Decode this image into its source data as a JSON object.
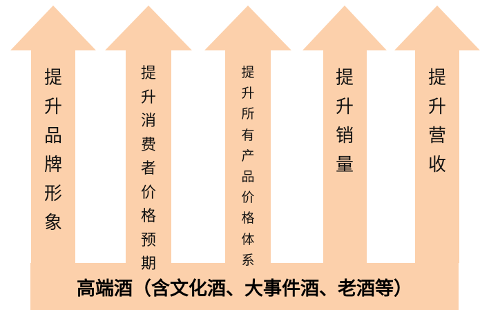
{
  "base": {
    "label": "高端酒（含文化酒、大事件酒、老酒等）"
  },
  "arrows": [
    {
      "label": "提升品牌形象"
    },
    {
      "label": "提升消费者价格预期"
    },
    {
      "label": "提升所有产品价格体系"
    },
    {
      "label": "提升销量"
    },
    {
      "label": "提升营收"
    }
  ],
  "colors": {
    "fill": "#fcd0ab",
    "text": "#111111"
  }
}
